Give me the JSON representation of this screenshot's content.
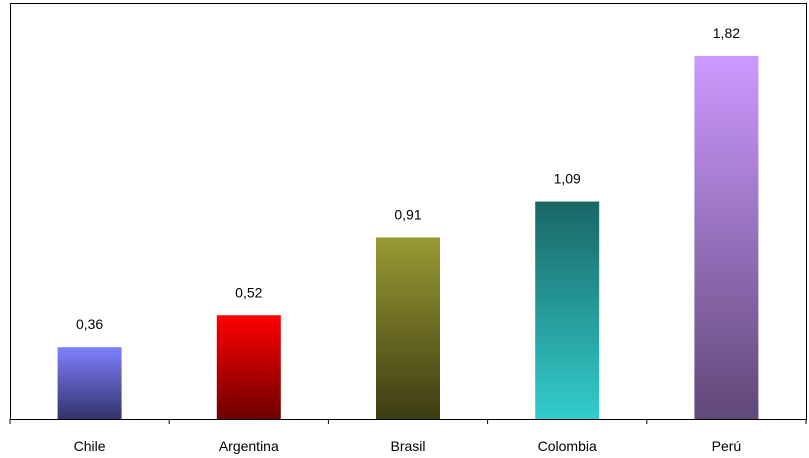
{
  "chart_data": {
    "type": "bar",
    "categories": [
      "Chile",
      "Argentina",
      "Brasil",
      "Colombia",
      "Perú"
    ],
    "values": [
      0.36,
      0.52,
      0.91,
      1.09,
      1.82
    ],
    "value_labels": [
      "0,36",
      "0,52",
      "0,91",
      "1,09",
      "1,82"
    ],
    "ylim": [
      0,
      2.0
    ],
    "grid": false,
    "legend": "none",
    "bar_gradients": [
      [
        "#8080ff",
        "#33336b"
      ],
      [
        "#ff0000",
        "#6e0000"
      ],
      [
        "#999933",
        "#3d3d14"
      ],
      [
        "#33cccc",
        "#1a6666"
      ],
      [
        "#cc99ff",
        "#604878"
      ]
    ],
    "bar_gradient_direction": [
      "top-to-bottom",
      "top-to-bottom",
      "top-to-bottom",
      "bottom-to-top",
      "top-to-bottom"
    ]
  }
}
